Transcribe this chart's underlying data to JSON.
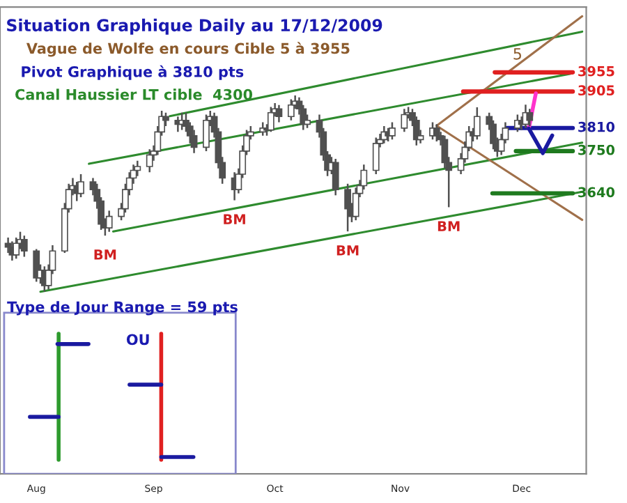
{
  "chart_data": {
    "type": "candlestick",
    "title": "Situation Graphique Daily au 17/12/2009",
    "annotations": [
      "Vague de Wolfe en cours Cible 5 à 3955",
      "Pivot Graphique à 3810 pts",
      "Canal Haussier LT cible  4300",
      "Type de Jour Range = 59 pts",
      "OU",
      {
        "text": "BM",
        "x": "2009-09-03",
        "y": 3530
      },
      {
        "text": "BM",
        "x": "2009-10-05",
        "y": 3622
      },
      {
        "text": "BM",
        "x": "2009-11-02",
        "y": 3541
      },
      {
        "text": "BM",
        "x": "2009-11-27",
        "y": 3604
      },
      {
        "text": "5",
        "x": "2009-12-14",
        "y": 3955
      }
    ],
    "color": "#505050",
    "x": [
      "2009-08-10",
      "2009-08-11",
      "2009-08-12",
      "2009-08-13",
      "2009-08-14",
      "2009-08-17",
      "2009-08-18",
      "2009-08-19",
      "2009-08-20",
      "2009-08-21",
      "2009-08-24",
      "2009-08-25",
      "2009-08-26",
      "2009-08-27",
      "2009-08-28",
      "2009-08-31",
      "2009-09-01",
      "2009-09-02",
      "2009-09-03",
      "2009-09-04",
      "2009-09-07",
      "2009-09-08",
      "2009-09-09",
      "2009-09-10",
      "2009-09-11",
      "2009-09-14",
      "2009-09-15",
      "2009-09-16",
      "2009-09-17",
      "2009-09-18",
      "2009-09-21",
      "2009-09-22",
      "2009-09-23",
      "2009-09-24",
      "2009-09-25",
      "2009-09-28",
      "2009-09-29",
      "2009-09-30",
      "2009-10-01",
      "2009-10-02",
      "2009-10-05",
      "2009-10-06",
      "2009-10-07",
      "2009-10-08",
      "2009-10-09",
      "2009-10-12",
      "2009-10-13",
      "2009-10-14",
      "2009-10-15",
      "2009-10-16",
      "2009-10-19",
      "2009-10-20",
      "2009-10-21",
      "2009-10-22",
      "2009-10-23",
      "2009-10-26",
      "2009-10-27",
      "2009-10-28",
      "2009-10-29",
      "2009-10-30",
      "2009-11-02",
      "2009-11-03",
      "2009-11-04",
      "2009-11-05",
      "2009-11-06",
      "2009-11-09",
      "2009-11-10",
      "2009-11-11",
      "2009-11-12",
      "2009-11-13",
      "2009-11-16",
      "2009-11-17",
      "2009-11-18",
      "2009-11-19",
      "2009-11-20",
      "2009-11-23",
      "2009-11-24",
      "2009-11-25",
      "2009-11-26",
      "2009-11-27",
      "2009-11-30",
      "2009-12-01",
      "2009-12-02",
      "2009-12-03",
      "2009-12-04",
      "2009-12-07",
      "2009-12-08",
      "2009-12-09",
      "2009-12-10",
      "2009-12-11",
      "2009-12-14",
      "2009-12-15",
      "2009-12-16",
      "2009-12-17"
    ],
    "ohlc": [
      [
        3510,
        3525,
        3485,
        3500
      ],
      [
        3500,
        3515,
        3465,
        3480
      ],
      [
        3480,
        3525,
        3470,
        3510
      ],
      [
        3510,
        3540,
        3495,
        3520
      ],
      [
        3520,
        3530,
        3475,
        3490
      ],
      [
        3490,
        3495,
        3410,
        3420
      ],
      [
        3420,
        3455,
        3405,
        3440
      ],
      [
        3440,
        3450,
        3384,
        3400
      ],
      [
        3400,
        3455,
        3390,
        3440
      ],
      [
        3440,
        3505,
        3430,
        3490
      ],
      [
        3490,
        3615,
        3485,
        3600
      ],
      [
        3600,
        3665,
        3590,
        3650
      ],
      [
        3650,
        3680,
        3635,
        3660
      ],
      [
        3660,
        3670,
        3620,
        3640
      ],
      [
        3640,
        3690,
        3630,
        3670
      ],
      [
        3670,
        3680,
        3635,
        3650
      ],
      [
        3650,
        3665,
        3600,
        3620
      ],
      [
        3620,
        3630,
        3545,
        3560
      ],
      [
        3560,
        3575,
        3530,
        3550
      ],
      [
        3550,
        3595,
        3540,
        3580
      ],
      [
        3580,
        3615,
        3570,
        3600
      ],
      [
        3600,
        3665,
        3590,
        3650
      ],
      [
        3650,
        3695,
        3635,
        3680
      ],
      [
        3680,
        3715,
        3665,
        3700
      ],
      [
        3700,
        3725,
        3685,
        3710
      ],
      [
        3710,
        3755,
        3695,
        3740
      ],
      [
        3740,
        3765,
        3725,
        3750
      ],
      [
        3750,
        3815,
        3740,
        3800
      ],
      [
        3800,
        3855,
        3790,
        3840
      ],
      [
        3840,
        3850,
        3815,
        3830
      ],
      [
        3830,
        3840,
        3800,
        3820
      ],
      [
        3820,
        3850,
        3805,
        3830
      ],
      [
        3830,
        3850,
        3800,
        3815
      ],
      [
        3815,
        3825,
        3770,
        3790
      ],
      [
        3790,
        3805,
        3745,
        3760
      ],
      [
        3760,
        3845,
        3750,
        3830
      ],
      [
        3830,
        3855,
        3815,
        3840
      ],
      [
        3840,
        3850,
        3785,
        3800
      ],
      [
        3800,
        3810,
        3705,
        3720
      ],
      [
        3720,
        3735,
        3665,
        3680
      ],
      [
        3680,
        3695,
        3622,
        3650
      ],
      [
        3650,
        3705,
        3640,
        3690
      ],
      [
        3690,
        3765,
        3680,
        3750
      ],
      [
        3750,
        3805,
        3740,
        3790
      ],
      [
        3790,
        3815,
        3780,
        3800
      ],
      [
        3800,
        3825,
        3790,
        3810
      ],
      [
        3810,
        3820,
        3790,
        3805
      ],
      [
        3805,
        3865,
        3800,
        3850
      ],
      [
        3850,
        3875,
        3840,
        3860
      ],
      [
        3860,
        3870,
        3825,
        3840
      ],
      [
        3840,
        3885,
        3830,
        3870
      ],
      [
        3870,
        3895,
        3860,
        3880
      ],
      [
        3880,
        3890,
        3845,
        3860
      ],
      [
        3860,
        3870,
        3805,
        3820
      ],
      [
        3820,
        3845,
        3810,
        3830
      ],
      [
        3830,
        3845,
        3785,
        3800
      ],
      [
        3800,
        3810,
        3725,
        3740
      ],
      [
        3740,
        3750,
        3685,
        3700
      ],
      [
        3700,
        3735,
        3690,
        3720
      ],
      [
        3720,
        3730,
        3635,
        3650
      ],
      [
        3650,
        3665,
        3541,
        3600
      ],
      [
        3600,
        3615,
        3565,
        3580
      ],
      [
        3580,
        3655,
        3570,
        3640
      ],
      [
        3640,
        3675,
        3630,
        3660
      ],
      [
        3660,
        3715,
        3650,
        3700
      ],
      [
        3700,
        3785,
        3690,
        3770
      ],
      [
        3770,
        3795,
        3760,
        3780
      ],
      [
        3780,
        3815,
        3770,
        3800
      ],
      [
        3800,
        3810,
        3775,
        3790
      ],
      [
        3790,
        3825,
        3780,
        3810
      ],
      [
        3810,
        3860,
        3800,
        3845
      ],
      [
        3845,
        3865,
        3835,
        3850
      ],
      [
        3850,
        3860,
        3815,
        3830
      ],
      [
        3830,
        3840,
        3765,
        3780
      ],
      [
        3780,
        3805,
        3770,
        3790
      ],
      [
        3790,
        3825,
        3780,
        3810
      ],
      [
        3810,
        3820,
        3775,
        3790
      ],
      [
        3790,
        3800,
        3765,
        3780
      ],
      [
        3780,
        3790,
        3705,
        3720
      ],
      [
        3720,
        3735,
        3604,
        3700
      ],
      [
        3700,
        3745,
        3690,
        3730
      ],
      [
        3730,
        3775,
        3720,
        3760
      ],
      [
        3760,
        3815,
        3750,
        3800
      ],
      [
        3800,
        3810,
        3775,
        3790
      ],
      [
        3790,
        3864,
        3780,
        3840
      ],
      [
        3840,
        3850,
        3805,
        3820
      ],
      [
        3820,
        3830,
        3755,
        3770
      ],
      [
        3770,
        3785,
        3735,
        3750
      ],
      [
        3750,
        3795,
        3740,
        3780
      ],
      [
        3780,
        3825,
        3770,
        3810
      ],
      [
        3810,
        3845,
        3800,
        3830
      ],
      [
        3830,
        3840,
        3805,
        3820
      ],
      [
        3820,
        3871,
        3810,
        3850
      ],
      [
        3850,
        3860,
        3815,
        3830
      ]
    ],
    "series": [
      {
        "type": "line",
        "color": "#2e8b2e",
        "x": [
          "2009-09-19",
          "2009-12-30"
        ],
        "values": [
          3841,
          4061
        ]
      },
      {
        "type": "line",
        "color": "#2e8b2e",
        "x": [
          "2009-08-30",
          "2009-12-27"
        ],
        "values": [
          3717,
          3951
        ]
      },
      {
        "type": "line",
        "color": "#2e8b2e",
        "x": [
          "2009-09-05",
          "2009-12-30"
        ],
        "values": [
          3541,
          3772
        ]
      },
      {
        "type": "line",
        "color": "#2e8b2e",
        "x": [
          "2009-08-18",
          "2009-12-30"
        ],
        "values": [
          3384,
          3644
        ]
      },
      {
        "type": "line",
        "color": "#a0704a",
        "x": [
          "2009-11-24",
          "2009-12-30"
        ],
        "values": [
          3816,
          4101
        ]
      },
      {
        "type": "line",
        "color": "#a0704a",
        "x": [
          "2009-11-24",
          "2009-12-30"
        ],
        "values": [
          3816,
          3571
        ]
      }
    ],
    "ref_lines": [
      {
        "axis": "y",
        "value": 3955,
        "label": "3955",
        "color": "#e02020"
      },
      {
        "axis": "y",
        "value": 3905,
        "label": "3905",
        "color": "#e02020"
      },
      {
        "axis": "y",
        "value": 3810,
        "label": "3810",
        "color": "#1a1aa0"
      },
      {
        "axis": "y",
        "value": 3750,
        "label": "3750",
        "color": "#1e7a1e"
      },
      {
        "axis": "y",
        "value": 3640,
        "label": "3640",
        "color": "#1e7a1e"
      }
    ],
    "xlim": [
      "2009-08-08",
      "2009-12-31"
    ],
    "ylim": [
      2910,
      4125
    ],
    "xticks": [
      {
        "value": "2009-08-17",
        "label": "Aug"
      },
      {
        "value": "2009-09-15",
        "label": "Sep"
      },
      {
        "value": "2009-10-15",
        "label": "Oct"
      },
      {
        "value": "2009-11-15",
        "label": "Nov"
      },
      {
        "value": "2009-12-15",
        "label": "Dec"
      }
    ],
    "tick_labels": "x"
  }
}
